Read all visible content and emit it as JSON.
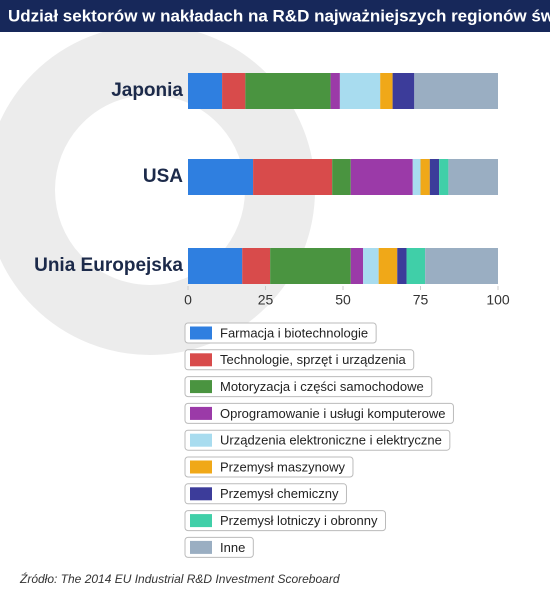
{
  "chart_data": {
    "type": "stacked-bar-horizontal",
    "title": "Udział sektorów w nakładach na R&D najważniejszych regionów świata",
    "source": "Źródło: The 2014 EU Industrial R&D Investment Scoreboard",
    "categories": [
      "Japonia",
      "USA",
      "Unia Europejska"
    ],
    "series": [
      {
        "name": "Farmacja i biotechnologie",
        "color": "#2f7fe0",
        "values": [
          11,
          21,
          17.5
        ]
      },
      {
        "name": "Technologie, sprzęt i urządzenia",
        "color": "#d84b4b",
        "values": [
          7.5,
          25.5,
          9
        ]
      },
      {
        "name": "Motoryzacja i części samochodowe",
        "color": "#4a9440",
        "values": [
          27.5,
          6,
          26
        ]
      },
      {
        "name": "Oprogramowanie i usługi komputerowe",
        "color": "#9b3aa8",
        "values": [
          3,
          20,
          4
        ]
      },
      {
        "name": "Urządzenia elektroniczne i elektryczne",
        "color": "#a8dcef",
        "values": [
          13,
          2.5,
          5
        ]
      },
      {
        "name": "Przemysł maszynowy",
        "color": "#f0a818",
        "values": [
          4,
          3,
          6
        ]
      },
      {
        "name": "Przemysł chemiczny",
        "color": "#3c3c9a",
        "values": [
          7,
          3,
          3
        ]
      },
      {
        "name": "Przemysł lotniczy i obronny",
        "color": "#40cfa8",
        "values": [
          0,
          3,
          6
        ]
      },
      {
        "name": "Inne",
        "color": "#9aaec2",
        "values": [
          27,
          16,
          23.5
        ]
      }
    ],
    "xlim": [
      0,
      100
    ],
    "xticks": [
      0,
      25,
      50,
      75,
      100
    ]
  }
}
